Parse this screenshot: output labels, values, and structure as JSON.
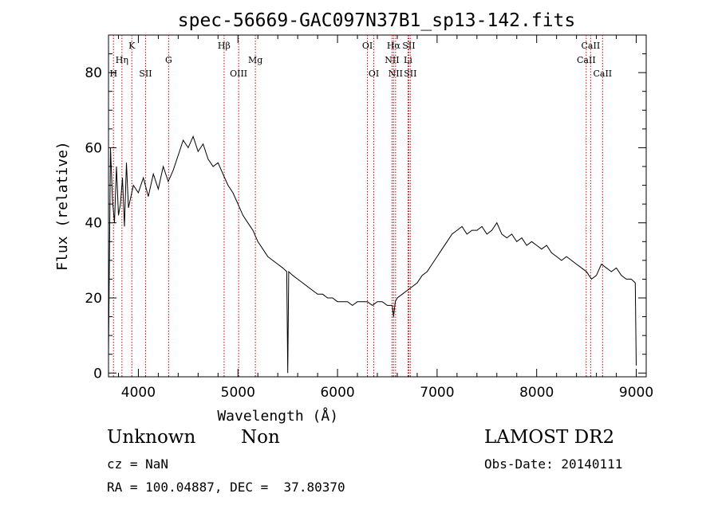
{
  "chart_data": {
    "type": "line",
    "title": "spec-56669-GAC097N37B1_sp13-142.fits",
    "xlabel": "Wavelength (Å)",
    "ylabel": "Flux (relative)",
    "xlim": [
      3700,
      9100
    ],
    "ylim": [
      -1,
      90
    ],
    "x_ticks": [
      4000,
      5000,
      6000,
      7000,
      8000,
      9000
    ],
    "y_ticks": [
      0,
      20,
      40,
      60,
      80
    ],
    "grid": false,
    "series": [
      {
        "x": [
          3700,
          3720,
          3740,
          3760,
          3780,
          3800,
          3820,
          3840,
          3860,
          3880,
          3900,
          3950,
          4000,
          4050,
          4100,
          4150,
          4200,
          4250,
          4300,
          4350,
          4400,
          4450,
          4500,
          4550,
          4600,
          4650,
          4700,
          4750,
          4800,
          4850,
          4900,
          4950,
          5000,
          5050,
          5100,
          5150,
          5200,
          5250,
          5300,
          5350,
          5400,
          5450,
          5490,
          5500,
          5510,
          5550,
          5600,
          5650,
          5700,
          5750,
          5800,
          5850,
          5900,
          5950,
          6000,
          6050,
          6100,
          6150,
          6200,
          6250,
          6300,
          6350,
          6400,
          6450,
          6500,
          6550,
          6563,
          6580,
          6600,
          6650,
          6700,
          6750,
          6800,
          6850,
          6900,
          6950,
          7000,
          7050,
          7100,
          7150,
          7200,
          7250,
          7300,
          7350,
          7400,
          7450,
          7500,
          7550,
          7600,
          7650,
          7700,
          7750,
          7800,
          7850,
          7900,
          7950,
          8000,
          8050,
          8100,
          8150,
          8200,
          8250,
          8300,
          8350,
          8400,
          8450,
          8500,
          8550,
          8600,
          8650,
          8700,
          8750,
          8800,
          8850,
          8900,
          8950,
          8990,
          9000
        ],
        "y": [
          5,
          60,
          46,
          40,
          55,
          42,
          45,
          52,
          39,
          56,
          44,
          50,
          48,
          52,
          47,
          53,
          49,
          55,
          51,
          54,
          58,
          62,
          60,
          63,
          59,
          61,
          57,
          55,
          56,
          53,
          50,
          48,
          45,
          42,
          40,
          38,
          35,
          33,
          31,
          30,
          29,
          28,
          27,
          0,
          27,
          26,
          25,
          24,
          23,
          22,
          21,
          21,
          20,
          20,
          19,
          19,
          19,
          18,
          19,
          19,
          19,
          18,
          19,
          19,
          18,
          18,
          15,
          19,
          20,
          21,
          22,
          23,
          24,
          26,
          27,
          29,
          31,
          33,
          35,
          37,
          38,
          39,
          37,
          38,
          38,
          39,
          37,
          38,
          40,
          37,
          36,
          37,
          35,
          36,
          34,
          35,
          34,
          33,
          34,
          32,
          31,
          30,
          31,
          30,
          29,
          28,
          27,
          25,
          26,
          29,
          28,
          27,
          28,
          26,
          25,
          25,
          24,
          2
        ]
      }
    ],
    "line_labels": [
      {
        "label": "K",
        "x": 3934,
        "row": 0
      },
      {
        "label": "Hη",
        "x": 3835,
        "row": 1
      },
      {
        "label": "H",
        "x": 3750,
        "row": 2
      },
      {
        "label": "SII",
        "x": 4072,
        "row": 2
      },
      {
        "label": "G",
        "x": 4304,
        "row": 1
      },
      {
        "label": "Hβ",
        "x": 4861,
        "row": 0
      },
      {
        "label": "OIII",
        "x": 5007,
        "row": 2
      },
      {
        "label": "Mg",
        "x": 5175,
        "row": 1
      },
      {
        "label": "OI",
        "x": 6300,
        "row": 0
      },
      {
        "label": "OI",
        "x": 6364,
        "row": 2
      },
      {
        "label": "Hα",
        "x": 6563,
        "row": 0
      },
      {
        "label": "NII",
        "x": 6548,
        "row": 1
      },
      {
        "label": "NII",
        "x": 6583,
        "row": 2
      },
      {
        "label": "SII",
        "x": 6716,
        "row": 0
      },
      {
        "label": "Li",
        "x": 6708,
        "row": 1
      },
      {
        "label": "SII",
        "x": 6731,
        "row": 2
      },
      {
        "label": "CaII",
        "x": 8542,
        "row": 0
      },
      {
        "label": "CaII",
        "x": 8498,
        "row": 1
      },
      {
        "label": "CaII",
        "x": 8662,
        "row": 2
      }
    ],
    "line_marker_x": [
      3750,
      3835,
      3934,
      4072,
      4304,
      4861,
      5007,
      5175,
      6300,
      6364,
      6548,
      6563,
      6583,
      6708,
      6716,
      6731,
      8498,
      8542,
      8662
    ],
    "marker_color": "#cc0000"
  },
  "info": {
    "object_class": "Unknown",
    "subclass": "Non",
    "survey": "LAMOST DR2",
    "redshift": "cz = NaN",
    "obs_date": "Obs-Date: 20140111",
    "coords": "RA = 100.04887, DEC =  37.80370"
  }
}
